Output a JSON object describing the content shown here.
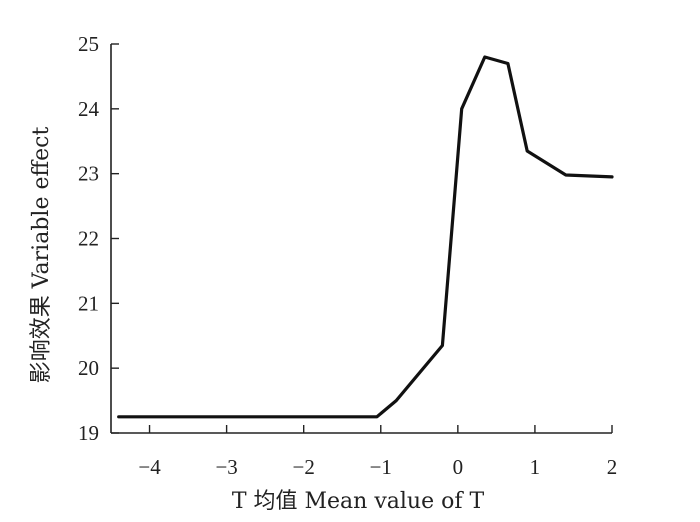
{
  "chart_data": {
    "type": "line",
    "title": "",
    "xlabel": "T 均值 Mean value of T",
    "ylabel": "影响效果 Variable effect",
    "xlim": [
      -4.5,
      2.0
    ],
    "ylim": [
      19,
      25
    ],
    "x_ticks": [
      -4,
      -3,
      -2,
      -1,
      0,
      1,
      2
    ],
    "x_tick_labels": [
      "−4",
      "−3",
      "−2",
      "−1",
      "0",
      "1",
      "2"
    ],
    "y_ticks": [
      19,
      20,
      21,
      22,
      23,
      24,
      25
    ],
    "y_tick_labels": [
      "19",
      "20",
      "21",
      "22",
      "23",
      "24",
      "25"
    ],
    "grid": false,
    "series": [
      {
        "x": [
          -4.4,
          -1.05,
          -0.8,
          -0.2,
          0.05,
          0.35,
          0.65,
          0.9,
          1.4,
          2.0
        ],
        "y": [
          19.25,
          19.25,
          19.5,
          20.35,
          24.0,
          24.8,
          24.7,
          23.35,
          22.98,
          22.95
        ]
      }
    ]
  }
}
